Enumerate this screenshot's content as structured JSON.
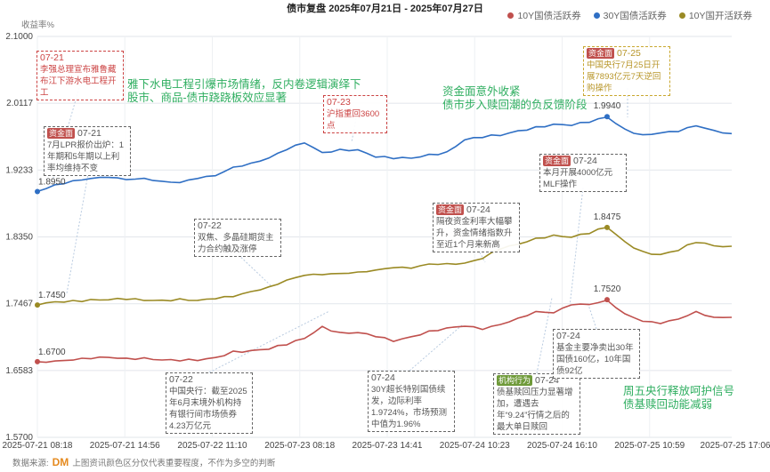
{
  "title": "债市复盘 2025年07月21日 - 2025年07月27日",
  "source": {
    "label": "数据来源:",
    "logo": "DM",
    "note": "上图资讯颜色区分仅代表重要程度，不作为多空的判断"
  },
  "notes": [
    [
      "雅下水电工程引爆市场情绪，反内卷逻辑演绎下",
      "股市、商品-债市跷跷板效应显著"
    ],
    [
      "资金面意外收紧",
      "债市步入赎回潮的负反馈阶段"
    ],
    [
      "周五央行释放呵护信号",
      "债基赎回动能减弱"
    ]
  ],
  "annotations": [
    {
      "tag": "",
      "date": "07-21",
      "text": "李强总理宣布雅鲁藏布江下游水电工程开工",
      "style": "red"
    },
    {
      "tag": "资金面",
      "date": "07-21",
      "text": "7月LPR报价出炉：1年期和5年期以上利率均维持不变",
      "style": "gray"
    },
    {
      "tag": "",
      "date": "07-23",
      "text": "沪指重回3600点",
      "style": "red"
    },
    {
      "tag": "",
      "date": "07-22",
      "text": "双焦、多晶硅期货主力合约触及涨停",
      "style": "gray"
    },
    {
      "tag": "资金面",
      "date": "07-24",
      "text": "本月开展4000亿元MLF操作",
      "style": "gray"
    },
    {
      "tag": "资金面",
      "date": "07-24",
      "text": "隔夜资金利率大幅攀升，资金情绪指数升至近1个月来新高",
      "style": "gray"
    },
    {
      "tag": "资金面",
      "date": "07-25",
      "text": "中国央行7月25日开展7893亿元7天逆回购操作",
      "style": "gold"
    },
    {
      "tag": "",
      "date": "07-22",
      "text": "中国央行：截至2025年6月末境外机构持有银行间市场债券4.23万亿元",
      "style": "gray"
    },
    {
      "tag": "",
      "date": "07-24",
      "text": "30Y超长特别国债续发，边际利率1.9724%，市场预测中值为1.96%",
      "style": "gray"
    },
    {
      "tag": "机构行为",
      "date": "07-24",
      "text": "债基赎回压力显著增加，遭遇去年“9.24”行情之后的最大单日赎回",
      "style": "gray"
    },
    {
      "tag": "",
      "date": "07-24",
      "text": "基金主要净卖出30年国债160亿，10年国债92亿",
      "style": "gray"
    }
  ],
  "chart_data": {
    "type": "line",
    "title": "债市复盘 2025年07月21日 - 2025年07月27日",
    "ylabel": "收益率%",
    "ylim": [
      1.57,
      2.1
    ],
    "yticks": [
      "2.1000",
      "2.0117",
      "1.9233",
      "1.8350",
      "1.7467",
      "1.6583",
      "1.5700"
    ],
    "xticks": [
      "2025-07-21 08:18",
      "2025-07-21 14:56",
      "2025-07-22 11:10",
      "2025-07-23 08:18",
      "2025-07-23 14:41",
      "2025-07-24 10:23",
      "2025-07-24 16:10",
      "2025-07-25 10:59",
      "2025-07-25 17:06"
    ],
    "grid": true,
    "legend": "top-right",
    "series": [
      {
        "name": "10Y国债活跃券",
        "color": "#c0504d",
        "start_label": "1.6700",
        "peak_label": "1.7520",
        "values": [
          1.67,
          1.6716,
          1.6728,
          1.674,
          1.6751,
          1.674,
          1.6751,
          1.6728,
          1.6716,
          1.6716,
          1.6751,
          1.6834,
          1.6846,
          1.6869,
          1.6928,
          1.701,
          1.7163,
          1.7081,
          1.7081,
          1.7034,
          1.6975,
          1.7034,
          1.7104,
          1.714,
          1.7163,
          1.7128,
          1.7198,
          1.7281,
          1.7363,
          1.734,
          1.7446,
          1.7457,
          1.752,
          1.734,
          1.7234,
          1.7198,
          1.7257,
          1.7363,
          1.7293,
          1.7293
        ]
      },
      {
        "name": "30Y国债活跃券",
        "color": "#2f6fc4",
        "start_label": "1.8950",
        "peak_label": "1.9940",
        "values": [
          1.895,
          1.9046,
          1.9093,
          1.9117,
          1.9129,
          1.9105,
          1.9129,
          1.9093,
          1.907,
          1.9117,
          1.9152,
          1.927,
          1.9329,
          1.9399,
          1.9505,
          1.9588,
          1.9458,
          1.9505,
          1.9505,
          1.9411,
          1.9388,
          1.9388,
          1.9435,
          1.947,
          1.9635,
          1.967,
          1.9694,
          1.9752,
          1.9799,
          1.9835,
          1.9823,
          1.987,
          1.994,
          1.9776,
          1.9694,
          1.9717,
          1.9741,
          1.9823,
          1.9764,
          1.9717
        ]
      },
      {
        "name": "10Y国开活跃券",
        "color": "#9a8a24",
        "start_label": "1.7450",
        "peak_label": "1.8475",
        "values": [
          1.745,
          1.7493,
          1.7504,
          1.7516,
          1.7516,
          1.7528,
          1.7516,
          1.7516,
          1.7528,
          1.7504,
          1.7528,
          1.7563,
          1.7634,
          1.7693,
          1.7775,
          1.7834,
          1.7846,
          1.7869,
          1.7893,
          1.7916,
          1.794,
          1.7928,
          1.7987,
          1.7999,
          1.801,
          1.8069,
          1.8187,
          1.8246,
          1.8328,
          1.8375,
          1.8352,
          1.8399,
          1.8475,
          1.8281,
          1.8152,
          1.8116,
          1.8175,
          1.8281,
          1.8234,
          1.8222
        ]
      }
    ]
  }
}
